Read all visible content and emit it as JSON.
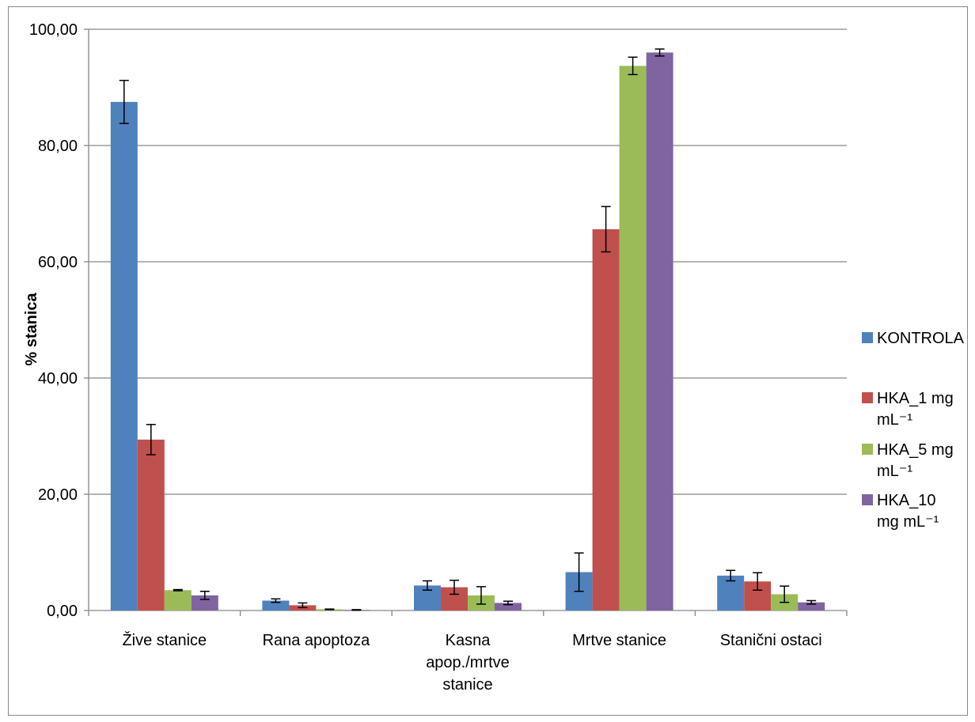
{
  "chart_data": {
    "type": "bar",
    "title": "",
    "xlabel": "",
    "ylabel": "% stanica",
    "ylim": [
      0,
      100
    ],
    "yticks": [
      "0,00",
      "20,00",
      "40,00",
      "60,00",
      "80,00",
      "100,00"
    ],
    "categories": [
      [
        "Žive stanice"
      ],
      [
        "Rana apoptoza"
      ],
      [
        "Kasna",
        "apop./mrtve",
        "stanice"
      ],
      [
        "Mrtve stanice"
      ],
      [
        "Stanični ostaci"
      ]
    ],
    "series": [
      {
        "name": [
          "KONTROLA"
        ],
        "color": "#4F81BD",
        "values": [
          87.5,
          1.7,
          4.3,
          6.6,
          6.0
        ],
        "errors": [
          3.7,
          0.3,
          0.8,
          3.3,
          0.9
        ]
      },
      {
        "name": [
          "HKA_1 mg",
          "mL⁻¹"
        ],
        "color": "#C0504D",
        "values": [
          29.4,
          0.9,
          4.0,
          65.6,
          5.0
        ],
        "errors": [
          2.6,
          0.4,
          1.2,
          3.9,
          1.5
        ]
      },
      {
        "name": [
          "HKA_5 mg",
          "mL⁻¹"
        ],
        "color": "#9BBB59",
        "values": [
          3.5,
          0.2,
          2.6,
          93.7,
          2.8
        ],
        "errors": [
          0.1,
          0.05,
          1.5,
          1.5,
          1.4
        ]
      },
      {
        "name": [
          "HKA_10",
          "mg mL⁻¹"
        ],
        "color": "#8064A2",
        "values": [
          2.6,
          0.1,
          1.3,
          96.0,
          1.4
        ],
        "errors": [
          0.7,
          0.05,
          0.3,
          0.6,
          0.3
        ]
      }
    ],
    "grid": true,
    "legend_position": "right"
  }
}
